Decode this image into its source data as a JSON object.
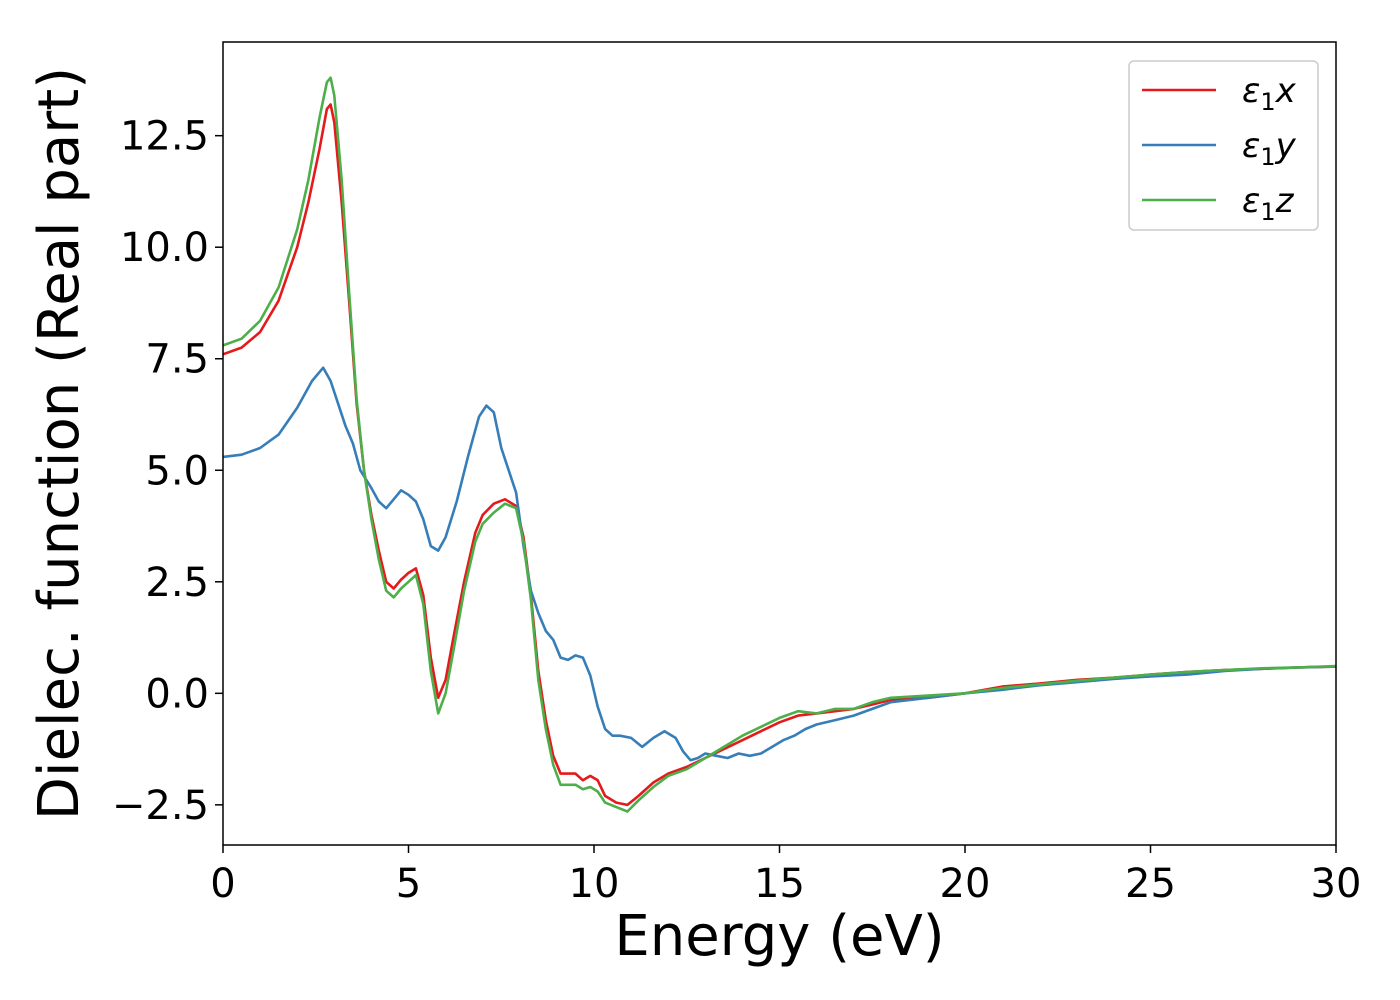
{
  "chart_data": {
    "type": "line",
    "title": "",
    "xlabel": "Energy (eV)",
    "ylabel": "Dielec. function (Real part)",
    "xlim": [
      0,
      30
    ],
    "ylim": [
      -3.4,
      14.6
    ],
    "xticks": [
      0,
      5,
      10,
      15,
      20,
      25,
      30
    ],
    "xtick_labels": [
      "0",
      "5",
      "10",
      "15",
      "20",
      "25",
      "30"
    ],
    "yticks": [
      -2.5,
      0.0,
      2.5,
      5.0,
      7.5,
      10.0,
      12.5
    ],
    "ytick_labels": [
      "−2.5",
      "0.0",
      "2.5",
      "5.0",
      "7.5",
      "10.0",
      "12.5"
    ],
    "grid": false,
    "legend_position": "top-right",
    "series": [
      {
        "name": "ε₁x",
        "legend_base": "ε",
        "legend_sub": "1",
        "legend_tail": "x",
        "color": "#e41a1c",
        "points": [
          [
            0,
            7.6
          ],
          [
            0.5,
            7.75
          ],
          [
            1,
            8.1
          ],
          [
            1.5,
            8.8
          ],
          [
            2,
            10.0
          ],
          [
            2.3,
            11.0
          ],
          [
            2.6,
            12.2
          ],
          [
            2.8,
            13.1
          ],
          [
            2.9,
            13.2
          ],
          [
            3.0,
            12.8
          ],
          [
            3.2,
            11.0
          ],
          [
            3.4,
            8.8
          ],
          [
            3.6,
            6.5
          ],
          [
            3.8,
            5.0
          ],
          [
            4.0,
            4.0
          ],
          [
            4.2,
            3.2
          ],
          [
            4.4,
            2.5
          ],
          [
            4.6,
            2.35
          ],
          [
            4.8,
            2.55
          ],
          [
            5.0,
            2.7
          ],
          [
            5.2,
            2.8
          ],
          [
            5.4,
            2.2
          ],
          [
            5.6,
            0.8
          ],
          [
            5.8,
            -0.1
          ],
          [
            6.0,
            0.3
          ],
          [
            6.2,
            1.2
          ],
          [
            6.5,
            2.5
          ],
          [
            6.8,
            3.6
          ],
          [
            7.0,
            4.0
          ],
          [
            7.3,
            4.25
          ],
          [
            7.6,
            4.35
          ],
          [
            7.9,
            4.2
          ],
          [
            8.1,
            3.5
          ],
          [
            8.3,
            2.2
          ],
          [
            8.5,
            0.5
          ],
          [
            8.7,
            -0.6
          ],
          [
            8.9,
            -1.4
          ],
          [
            9.1,
            -1.8
          ],
          [
            9.3,
            -1.8
          ],
          [
            9.5,
            -1.8
          ],
          [
            9.7,
            -1.95
          ],
          [
            9.9,
            -1.85
          ],
          [
            10.1,
            -1.95
          ],
          [
            10.3,
            -2.3
          ],
          [
            10.6,
            -2.45
          ],
          [
            10.9,
            -2.5
          ],
          [
            11.2,
            -2.3
          ],
          [
            11.6,
            -2.0
          ],
          [
            12.0,
            -1.8
          ],
          [
            12.5,
            -1.65
          ],
          [
            13.0,
            -1.45
          ],
          [
            13.5,
            -1.25
          ],
          [
            14.0,
            -1.05
          ],
          [
            14.5,
            -0.85
          ],
          [
            15.0,
            -0.65
          ],
          [
            15.5,
            -0.5
          ],
          [
            16.0,
            -0.45
          ],
          [
            16.5,
            -0.4
          ],
          [
            17.0,
            -0.35
          ],
          [
            17.5,
            -0.25
          ],
          [
            18.0,
            -0.15
          ],
          [
            19.0,
            -0.1
          ],
          [
            20.0,
            0.0
          ],
          [
            21.0,
            0.15
          ],
          [
            22.0,
            0.22
          ],
          [
            23.0,
            0.3
          ],
          [
            24.0,
            0.35
          ],
          [
            25.0,
            0.42
          ],
          [
            26.0,
            0.48
          ],
          [
            27.0,
            0.52
          ],
          [
            28.0,
            0.55
          ],
          [
            29.0,
            0.58
          ],
          [
            30.0,
            0.6
          ]
        ]
      },
      {
        "name": "ε₁y",
        "legend_base": "ε",
        "legend_sub": "1",
        "legend_tail": "y",
        "color": "#377eb8",
        "points": [
          [
            0,
            5.3
          ],
          [
            0.5,
            5.35
          ],
          [
            1,
            5.5
          ],
          [
            1.5,
            5.8
          ],
          [
            2.0,
            6.4
          ],
          [
            2.4,
            7.0
          ],
          [
            2.7,
            7.3
          ],
          [
            2.9,
            7.0
          ],
          [
            3.1,
            6.5
          ],
          [
            3.3,
            6.0
          ],
          [
            3.5,
            5.6
          ],
          [
            3.7,
            5.0
          ],
          [
            4.0,
            4.6
          ],
          [
            4.2,
            4.3
          ],
          [
            4.4,
            4.15
          ],
          [
            4.6,
            4.35
          ],
          [
            4.8,
            4.55
          ],
          [
            5.0,
            4.45
          ],
          [
            5.2,
            4.3
          ],
          [
            5.4,
            3.9
          ],
          [
            5.6,
            3.3
          ],
          [
            5.8,
            3.2
          ],
          [
            6.0,
            3.5
          ],
          [
            6.3,
            4.3
          ],
          [
            6.6,
            5.3
          ],
          [
            6.9,
            6.2
          ],
          [
            7.1,
            6.45
          ],
          [
            7.3,
            6.3
          ],
          [
            7.5,
            5.5
          ],
          [
            7.7,
            5.0
          ],
          [
            7.9,
            4.5
          ],
          [
            8.1,
            3.3
          ],
          [
            8.3,
            2.3
          ],
          [
            8.5,
            1.8
          ],
          [
            8.7,
            1.4
          ],
          [
            8.9,
            1.2
          ],
          [
            9.1,
            0.8
          ],
          [
            9.3,
            0.75
          ],
          [
            9.5,
            0.85
          ],
          [
            9.7,
            0.8
          ],
          [
            9.9,
            0.4
          ],
          [
            10.1,
            -0.3
          ],
          [
            10.3,
            -0.8
          ],
          [
            10.5,
            -0.95
          ],
          [
            10.7,
            -0.95
          ],
          [
            11.0,
            -1.0
          ],
          [
            11.3,
            -1.2
          ],
          [
            11.6,
            -1.0
          ],
          [
            11.9,
            -0.85
          ],
          [
            12.2,
            -1.0
          ],
          [
            12.4,
            -1.3
          ],
          [
            12.6,
            -1.5
          ],
          [
            12.8,
            -1.45
          ],
          [
            13.0,
            -1.35
          ],
          [
            13.3,
            -1.4
          ],
          [
            13.6,
            -1.45
          ],
          [
            13.9,
            -1.35
          ],
          [
            14.2,
            -1.4
          ],
          [
            14.5,
            -1.35
          ],
          [
            14.8,
            -1.2
          ],
          [
            15.1,
            -1.05
          ],
          [
            15.4,
            -0.95
          ],
          [
            15.7,
            -0.8
          ],
          [
            16.0,
            -0.7
          ],
          [
            16.5,
            -0.6
          ],
          [
            17.0,
            -0.5
          ],
          [
            17.5,
            -0.35
          ],
          [
            18.0,
            -0.2
          ],
          [
            19.0,
            -0.1
          ],
          [
            20.0,
            0.0
          ],
          [
            21.0,
            0.08
          ],
          [
            22.0,
            0.18
          ],
          [
            23.0,
            0.25
          ],
          [
            24.0,
            0.32
          ],
          [
            25.0,
            0.38
          ],
          [
            26.0,
            0.42
          ],
          [
            27.0,
            0.5
          ],
          [
            28.0,
            0.55
          ],
          [
            29.0,
            0.58
          ],
          [
            30.0,
            0.6
          ]
        ]
      },
      {
        "name": "ε₁z",
        "legend_base": "ε",
        "legend_sub": "1",
        "legend_tail": "z",
        "color": "#4daf4a",
        "points": [
          [
            0,
            7.8
          ],
          [
            0.5,
            7.95
          ],
          [
            1,
            8.35
          ],
          [
            1.5,
            9.1
          ],
          [
            2,
            10.4
          ],
          [
            2.3,
            11.5
          ],
          [
            2.6,
            12.9
          ],
          [
            2.8,
            13.7
          ],
          [
            2.9,
            13.8
          ],
          [
            3.0,
            13.4
          ],
          [
            3.2,
            11.5
          ],
          [
            3.4,
            9.0
          ],
          [
            3.6,
            6.6
          ],
          [
            3.8,
            5.0
          ],
          [
            4.0,
            3.9
          ],
          [
            4.2,
            3.0
          ],
          [
            4.4,
            2.3
          ],
          [
            4.6,
            2.15
          ],
          [
            4.8,
            2.35
          ],
          [
            5.0,
            2.5
          ],
          [
            5.2,
            2.65
          ],
          [
            5.4,
            2.0
          ],
          [
            5.6,
            0.5
          ],
          [
            5.8,
            -0.45
          ],
          [
            6.0,
            0.0
          ],
          [
            6.2,
            0.9
          ],
          [
            6.5,
            2.3
          ],
          [
            6.8,
            3.4
          ],
          [
            7.0,
            3.8
          ],
          [
            7.3,
            4.05
          ],
          [
            7.6,
            4.25
          ],
          [
            7.9,
            4.15
          ],
          [
            8.1,
            3.4
          ],
          [
            8.3,
            2.1
          ],
          [
            8.5,
            0.3
          ],
          [
            8.7,
            -0.8
          ],
          [
            8.9,
            -1.6
          ],
          [
            9.1,
            -2.05
          ],
          [
            9.3,
            -2.05
          ],
          [
            9.5,
            -2.05
          ],
          [
            9.7,
            -2.15
          ],
          [
            9.9,
            -2.1
          ],
          [
            10.1,
            -2.2
          ],
          [
            10.3,
            -2.45
          ],
          [
            10.6,
            -2.55
          ],
          [
            10.9,
            -2.65
          ],
          [
            11.2,
            -2.4
          ],
          [
            11.6,
            -2.1
          ],
          [
            12.0,
            -1.85
          ],
          [
            12.5,
            -1.7
          ],
          [
            13.0,
            -1.45
          ],
          [
            13.5,
            -1.2
          ],
          [
            14.0,
            -0.95
          ],
          [
            14.5,
            -0.75
          ],
          [
            15.0,
            -0.55
          ],
          [
            15.5,
            -0.4
          ],
          [
            16.0,
            -0.45
          ],
          [
            16.5,
            -0.35
          ],
          [
            17.0,
            -0.35
          ],
          [
            17.5,
            -0.2
          ],
          [
            18.0,
            -0.1
          ],
          [
            19.0,
            -0.05
          ],
          [
            20.0,
            0.0
          ],
          [
            21.0,
            0.12
          ],
          [
            22.0,
            0.2
          ],
          [
            23.0,
            0.28
          ],
          [
            24.0,
            0.35
          ],
          [
            25.0,
            0.42
          ],
          [
            26.0,
            0.48
          ],
          [
            27.0,
            0.52
          ],
          [
            28.0,
            0.56
          ],
          [
            29.0,
            0.58
          ],
          [
            30.0,
            0.61
          ]
        ]
      }
    ]
  }
}
